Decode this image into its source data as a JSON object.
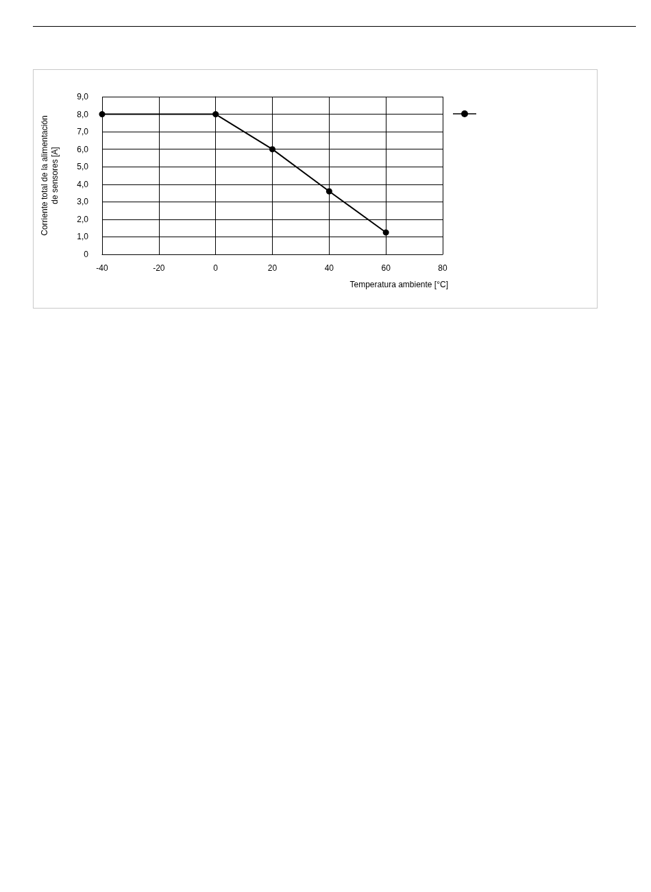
{
  "chart_data": {
    "type": "line",
    "xlabel": "Temperatura ambiente [°C]",
    "ylabel": "Corriente total de la alimentación de sensores [A]",
    "x": [
      -40,
      0,
      20,
      40,
      60
    ],
    "series": [
      {
        "color": "#000000",
        "values": [
          8,
          8,
          6,
          3.6,
          1.25
        ]
      }
    ],
    "xlim": [
      -40,
      80
    ],
    "xticks": [
      -40,
      -20,
      0,
      20,
      40,
      60,
      80
    ],
    "ylim": [
      0,
      9
    ],
    "yticks": [
      0,
      {
        "value": 1,
        "label": "1,0"
      },
      {
        "value": 2,
        "label": "2,0"
      },
      {
        "value": 3,
        "label": "3,0"
      },
      {
        "value": 4,
        "label": "4,0"
      },
      {
        "value": 5,
        "label": "5,0"
      },
      {
        "value": 6,
        "label": "6,0"
      },
      {
        "value": 7,
        "label": "7,0"
      },
      {
        "value": 8,
        "label": "8,0"
      },
      {
        "value": 9,
        "label": "9,0"
      }
    ],
    "grid": true,
    "marker": "circle",
    "line_style": "solid"
  }
}
